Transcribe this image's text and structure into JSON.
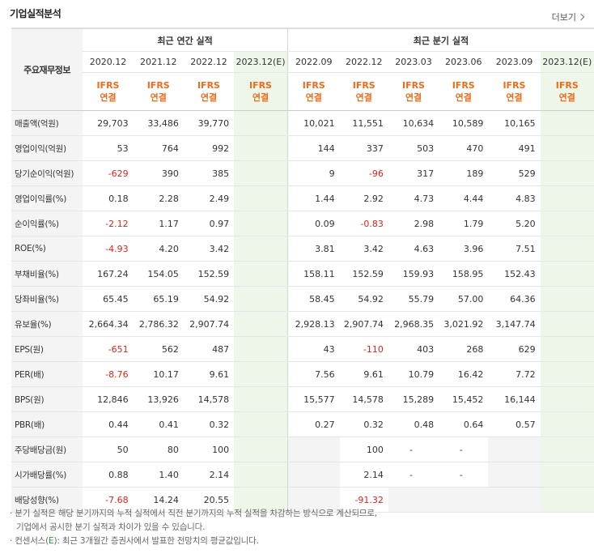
{
  "header": {
    "title": "기업실적분석",
    "more_label": "더보기"
  },
  "table": {
    "corner_label": "주요재무정보",
    "annual_group": "최근 연간 실적",
    "quarter_group": "최근 분기 실적",
    "annual_periods": [
      "2020.12",
      "2021.12",
      "2022.12",
      "2023.12(E)"
    ],
    "quarter_periods": [
      "2022.09",
      "2022.12",
      "2023.03",
      "2023.06",
      "2023.09",
      "2023.12(E)"
    ],
    "basis_top": "IFRS",
    "basis_bottom": "연결",
    "rows": [
      {
        "label": "매출액(억원)",
        "annual": [
          "29,703",
          "33,486",
          "39,770",
          ""
        ],
        "quarter": [
          "10,021",
          "11,551",
          "10,634",
          "10,589",
          "10,165",
          ""
        ]
      },
      {
        "label": "영업이익(억원)",
        "annual": [
          "53",
          "764",
          "992",
          ""
        ],
        "quarter": [
          "144",
          "337",
          "503",
          "470",
          "491",
          ""
        ]
      },
      {
        "label": "당기순이익(억원)",
        "annual": [
          "-629",
          "390",
          "385",
          ""
        ],
        "quarter": [
          "9",
          "-96",
          "317",
          "189",
          "529",
          ""
        ]
      },
      {
        "label": "영업이익률(%)",
        "annual": [
          "0.18",
          "2.28",
          "2.49",
          ""
        ],
        "quarter": [
          "1.44",
          "2.92",
          "4.73",
          "4.44",
          "4.83",
          ""
        ]
      },
      {
        "label": "순이익률(%)",
        "annual": [
          "-2.12",
          "1.17",
          "0.97",
          ""
        ],
        "quarter": [
          "0.09",
          "-0.83",
          "2.98",
          "1.79",
          "5.20",
          ""
        ]
      },
      {
        "label": "ROE(%)",
        "annual": [
          "-4.93",
          "4.20",
          "3.42",
          ""
        ],
        "quarter": [
          "3.81",
          "3.42",
          "4.63",
          "3.96",
          "7.51",
          ""
        ]
      },
      {
        "label": "부채비율(%)",
        "annual": [
          "167.24",
          "154.05",
          "152.59",
          ""
        ],
        "quarter": [
          "158.11",
          "152.59",
          "159.93",
          "158.95",
          "152.43",
          ""
        ]
      },
      {
        "label": "당좌비율(%)",
        "annual": [
          "65.45",
          "65.19",
          "54.92",
          ""
        ],
        "quarter": [
          "58.45",
          "54.92",
          "55.79",
          "57.00",
          "64.36",
          ""
        ]
      },
      {
        "label": "유보율(%)",
        "annual": [
          "2,664.34",
          "2,786.32",
          "2,907.74",
          ""
        ],
        "quarter": [
          "2,928.13",
          "2,907.74",
          "2,968.35",
          "3,021.92",
          "3,147.74",
          ""
        ]
      },
      {
        "label": "EPS(원)",
        "annual": [
          "-651",
          "562",
          "487",
          ""
        ],
        "quarter": [
          "43",
          "-110",
          "403",
          "268",
          "629",
          ""
        ]
      },
      {
        "label": "PER(배)",
        "annual": [
          "-8.76",
          "10.17",
          "9.61",
          ""
        ],
        "quarter": [
          "7.56",
          "9.61",
          "10.79",
          "16.42",
          "7.72",
          ""
        ]
      },
      {
        "label": "BPS(원)",
        "annual": [
          "12,846",
          "13,926",
          "14,578",
          ""
        ],
        "quarter": [
          "15,577",
          "14,578",
          "15,289",
          "15,452",
          "16,144",
          ""
        ]
      },
      {
        "label": "PBR(배)",
        "annual": [
          "0.44",
          "0.41",
          "0.32",
          ""
        ],
        "quarter": [
          "0.27",
          "0.32",
          "0.48",
          "0.64",
          "0.57",
          ""
        ]
      },
      {
        "label": "주당배당금(원)",
        "annual": [
          "50",
          "80",
          "100",
          ""
        ],
        "quarter": [
          "",
          "100",
          "-",
          "-",
          "",
          ""
        ]
      },
      {
        "label": "시가배당률(%)",
        "annual": [
          "0.88",
          "1.40",
          "2.14",
          ""
        ],
        "quarter": [
          "",
          "2.14",
          "-",
          "-",
          "",
          ""
        ]
      },
      {
        "label": "배당성향(%)",
        "annual": [
          "-7.68",
          "14.24",
          "20.55",
          ""
        ],
        "quarter": [
          "",
          "-91.32",
          "",
          "",
          "",
          ""
        ]
      }
    ]
  },
  "notes": {
    "line1": "· 분기 실적은 해당 분기까지의 누적 실적에서 직전 분기까지의 누적 실적을 차감하는 방식으로 계산되므로,",
    "line2": "기업에서 공시한 분기 실적과 차이가 있을 수 있습니다.",
    "line3_prefix": "· 컨센서스(",
    "line3_e": "E",
    "line3_suffix": "): 최근 3개월간 증권사에서 발표한 전망치의 평균값입니다."
  },
  "colors": {
    "negative": "#e2231a",
    "basis": "#ee6b1a",
    "estimate_bg": "#eef6ea",
    "consensus_e": "#2a9a3a"
  }
}
